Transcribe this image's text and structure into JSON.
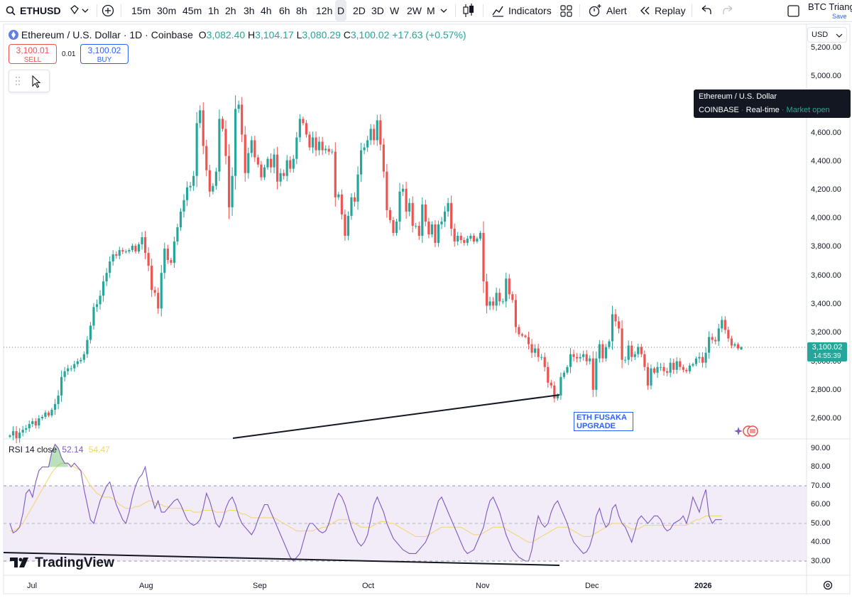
{
  "toolbar": {
    "symbol": "ETHUSD",
    "intervals": [
      "15m",
      "30m",
      "45m",
      "1h",
      "2h",
      "3h",
      "4h",
      "6h",
      "8h",
      "12h",
      "D",
      "2D",
      "3D",
      "W",
      "2W",
      "M"
    ],
    "active_interval": "D",
    "indicators_label": "Indicators",
    "alert_label": "Alert",
    "replay_label": "Replay",
    "layout_name": "BTC Triang",
    "save_label": "Save"
  },
  "legend": {
    "title": "Ethereum / U.S. Dollar · 1D · Coinbase",
    "o_label": "O",
    "o_value": "3,082.40",
    "h_label": "H",
    "h_value": "3,104.17",
    "l_label": "L",
    "l_value": "3,080.29",
    "c_label": "C",
    "c_value": "3,100.02",
    "change": "+17.63 (+0.57%)"
  },
  "trade": {
    "sell_price": "3,100.01",
    "sell_label": "SELL",
    "spread": "0.01",
    "buy_price": "3,100.02",
    "buy_label": "BUY"
  },
  "tooltip": {
    "title": "Ethereum / U.S. Dollar",
    "exchange": "COINBASE",
    "feed": "Real-time",
    "status": "Market open"
  },
  "price_axis": {
    "currency": "USD",
    "labels": [
      "5,200.00",
      "5,000.00",
      "4,600.00",
      "4,400.00",
      "4,200.00",
      "4,000.00",
      "3,800.00",
      "3,600.00",
      "3,400.00",
      "3,200.00",
      "3,000.00",
      "2,800.00",
      "2,600.00"
    ],
    "current_price": "3,100.02",
    "countdown": "14:55:39"
  },
  "rsi": {
    "label": "RSI 14 close",
    "value": "52.14",
    "ma_value": "54.47",
    "axis_labels": [
      "90.00",
      "80.00",
      "70.00",
      "60.00",
      "50.00",
      "40.00",
      "30.00"
    ]
  },
  "time_axis": {
    "labels": [
      "Jul",
      "Aug",
      "Sep",
      "Oct",
      "Nov",
      "Dec",
      "2026"
    ]
  },
  "annotation": {
    "line1": "ETH FUSAKA",
    "line2": "UPGRADE"
  },
  "branding": {
    "logo_text": "TradingView"
  },
  "colors": {
    "up": "#26a69a",
    "down": "#ef5350",
    "rsi_line": "#7e57c2",
    "rsi_ma": "#f3d36b",
    "rsi_band": "#ede7f6",
    "accent": "#2962ff"
  },
  "chart_data": {
    "type": "candlestick",
    "symbol": "ETHUSD",
    "title": "Ethereum / U.S. Dollar · 1D · Coinbase",
    "y_unit": "USD",
    "ylim": [
      2540,
      5280
    ],
    "x_labels": [
      "Jul",
      "Aug",
      "Sep",
      "Oct",
      "Nov",
      "Dec",
      "2026"
    ],
    "close": [
      2480,
      2510,
      2460,
      2500,
      2520,
      2530,
      2560,
      2580,
      2550,
      2600,
      2610,
      2640,
      2620,
      2660,
      2700,
      2760,
      2890,
      2930,
      2950,
      2950,
      2980,
      3000,
      3010,
      3050,
      3150,
      3250,
      3380,
      3400,
      3460,
      3560,
      3620,
      3700,
      3750,
      3740,
      3780,
      3770,
      3770,
      3780,
      3810,
      3770,
      3820,
      3870,
      3760,
      3670,
      3500,
      3480,
      3370,
      3620,
      3790,
      3710,
      3690,
      3840,
      3940,
      4050,
      4130,
      4220,
      4230,
      4300,
      4670,
      4760,
      4510,
      4340,
      4190,
      4230,
      4330,
      4700,
      4630,
      4440,
      4080,
      4300,
      4770,
      4800,
      4590,
      4320,
      4460,
      4550,
      4430,
      4380,
      4290,
      4360,
      4420,
      4360,
      4450,
      4260,
      4320,
      4300,
      4410,
      4350,
      4420,
      4570,
      4700,
      4670,
      4590,
      4500,
      4570,
      4480,
      4540,
      4480,
      4490,
      4470,
      4470,
      4150,
      4170,
      4030,
      3880,
      4020,
      4150,
      4120,
      4310,
      4480,
      4500,
      4550,
      4630,
      4550,
      4690,
      4520,
      4330,
      4060,
      3990,
      3900,
      3980,
      4190,
      4210,
      4050,
      4110,
      3950,
      3950,
      3880,
      4100,
      3980,
      3890,
      3960,
      3830,
      3960,
      3980,
      4050,
      4110,
      3930,
      3840,
      3880,
      3850,
      3830,
      3860,
      3880,
      3840,
      3860,
      3900,
      3560,
      3390,
      3420,
      3390,
      3480,
      3420,
      3420,
      3580,
      3470,
      3430,
      3240,
      3190,
      3180,
      3170,
      3120,
      3060,
      3090,
      3030,
      3030,
      2960,
      2850,
      2830,
      2740,
      2760,
      2890,
      2920,
      2960,
      3050,
      3030,
      3020,
      3030,
      3050,
      3000,
      3020,
      2800,
      3020,
      3120,
      3020,
      3100,
      3140,
      3330,
      3280,
      3230,
      3010,
      3010,
      3110,
      3030,
      3050,
      3100,
      3050,
      2960,
      2830,
      2950,
      2920,
      2960,
      2960,
      2930,
      2920,
      2990,
      2940,
      3000,
      2960,
      2940,
      2930,
      2970,
      2980,
      3020,
      3030,
      2990,
      3060,
      3170,
      3150,
      3140,
      3230,
      3290,
      3220,
      3160,
      3110,
      3120,
      3090,
      3100
    ],
    "last_candle": {
      "open": 3082.4,
      "high": 3104.17,
      "low": 3080.29,
      "close": 3100.02
    },
    "price_swings": [
      [
        0,
        2480
      ],
      [
        60,
        4760
      ],
      [
        70,
        4800
      ],
      [
        110,
        4550
      ],
      [
        112,
        4740
      ],
      [
        135,
        3960
      ],
      [
        161,
        2840
      ],
      [
        168,
        2700
      ],
      [
        176,
        3050
      ],
      [
        179,
        2800
      ],
      [
        183,
        3330
      ],
      [
        196,
        2830
      ],
      [
        211,
        3290
      ],
      [
        216,
        3100
      ]
    ],
    "rsi": {
      "period": 14,
      "ylim": [
        25,
        95
      ],
      "bands": [
        30,
        50,
        70
      ],
      "values": [
        50,
        45,
        46,
        48,
        55,
        66,
        68,
        64,
        72,
        78,
        80,
        80,
        80,
        88,
        92,
        90,
        85,
        82,
        82,
        80,
        82,
        80,
        78,
        68,
        60,
        52,
        50,
        56,
        62,
        66,
        70,
        72,
        66,
        60,
        56,
        52,
        50,
        56,
        64,
        70,
        74,
        76,
        80,
        70,
        64,
        58,
        62,
        56,
        56,
        58,
        60,
        62,
        63,
        60,
        56,
        52,
        50,
        49,
        50,
        52,
        58,
        66,
        62,
        56,
        50,
        48,
        52,
        58,
        62,
        64,
        60,
        54,
        50,
        48,
        46,
        44,
        47,
        52,
        56,
        60,
        60,
        56,
        52,
        48,
        44,
        40,
        36,
        32,
        30,
        32,
        34,
        40,
        46,
        50,
        50,
        48,
        46,
        45,
        46,
        50,
        56,
        62,
        66,
        64,
        60,
        54,
        48,
        44,
        40,
        38,
        40,
        44,
        52,
        60,
        64,
        60,
        56,
        50,
        46,
        42,
        40,
        38,
        36,
        35,
        34,
        34,
        34,
        36,
        38,
        40,
        44,
        50,
        56,
        62,
        64,
        60,
        56,
        52,
        48,
        44,
        40,
        36,
        34,
        35,
        36,
        40,
        44,
        48,
        56,
        62,
        64,
        60,
        56,
        50,
        44,
        40,
        36,
        34,
        32,
        31,
        30,
        30,
        36,
        46,
        54,
        50,
        48,
        50,
        56,
        60,
        62,
        58,
        54,
        50,
        44,
        40,
        38,
        36,
        34,
        35,
        38,
        44,
        54,
        58,
        52,
        48,
        50,
        58,
        60,
        54,
        50,
        48,
        44,
        40,
        46,
        52,
        54,
        52,
        50,
        52,
        54,
        54,
        52,
        48,
        46,
        47,
        50,
        51,
        52,
        54,
        50,
        56,
        64,
        60,
        56,
        63,
        68,
        54,
        50,
        52,
        52,
        52
      ],
      "ma_values": [
        46,
        46,
        47,
        48,
        50,
        53,
        56,
        59,
        62,
        65,
        68,
        71,
        74,
        77,
        79,
        81,
        82,
        82,
        82,
        81,
        80,
        79,
        78,
        76,
        73,
        70,
        68,
        66,
        65,
        64,
        64,
        64,
        63,
        62,
        60,
        59,
        58,
        58,
        58,
        59,
        59,
        60,
        61,
        62,
        62,
        61,
        60,
        60,
        59,
        59,
        58,
        58,
        58,
        58,
        57,
        57,
        57,
        56,
        56,
        56,
        57,
        57,
        57,
        57,
        56,
        56,
        56,
        56,
        57,
        57,
        57,
        56,
        55,
        55,
        54,
        53,
        53,
        53,
        53,
        53,
        53,
        53,
        53,
        52,
        51,
        50,
        49,
        48,
        47,
        46,
        46,
        46,
        46,
        46,
        46,
        47,
        47,
        48,
        48,
        49,
        50,
        51,
        52,
        52,
        52,
        52,
        51,
        50,
        49,
        48,
        48,
        48,
        48,
        49,
        50,
        51,
        51,
        51,
        50,
        50,
        49,
        48,
        47,
        46,
        45,
        44,
        43,
        43,
        43,
        43,
        44,
        45,
        46,
        47,
        48,
        48,
        48,
        48,
        48,
        48,
        48,
        47,
        46,
        45,
        44,
        44,
        44,
        45,
        46,
        47,
        48,
        48,
        48,
        48,
        47,
        46,
        45,
        44,
        43,
        42,
        41,
        40,
        40,
        41,
        42,
        43,
        44,
        45,
        46,
        47,
        48,
        48,
        48,
        48,
        47,
        46,
        45,
        44,
        43,
        43,
        43,
        44,
        45,
        46,
        47,
        48,
        49,
        50,
        50,
        50,
        50,
        49,
        48,
        47,
        47,
        47,
        48,
        49,
        49,
        49,
        49,
        49,
        49,
        49,
        49,
        49,
        49,
        49,
        49,
        49,
        49,
        50,
        51,
        52,
        52,
        53,
        54,
        54,
        54,
        54,
        54,
        54
      ]
    }
  }
}
